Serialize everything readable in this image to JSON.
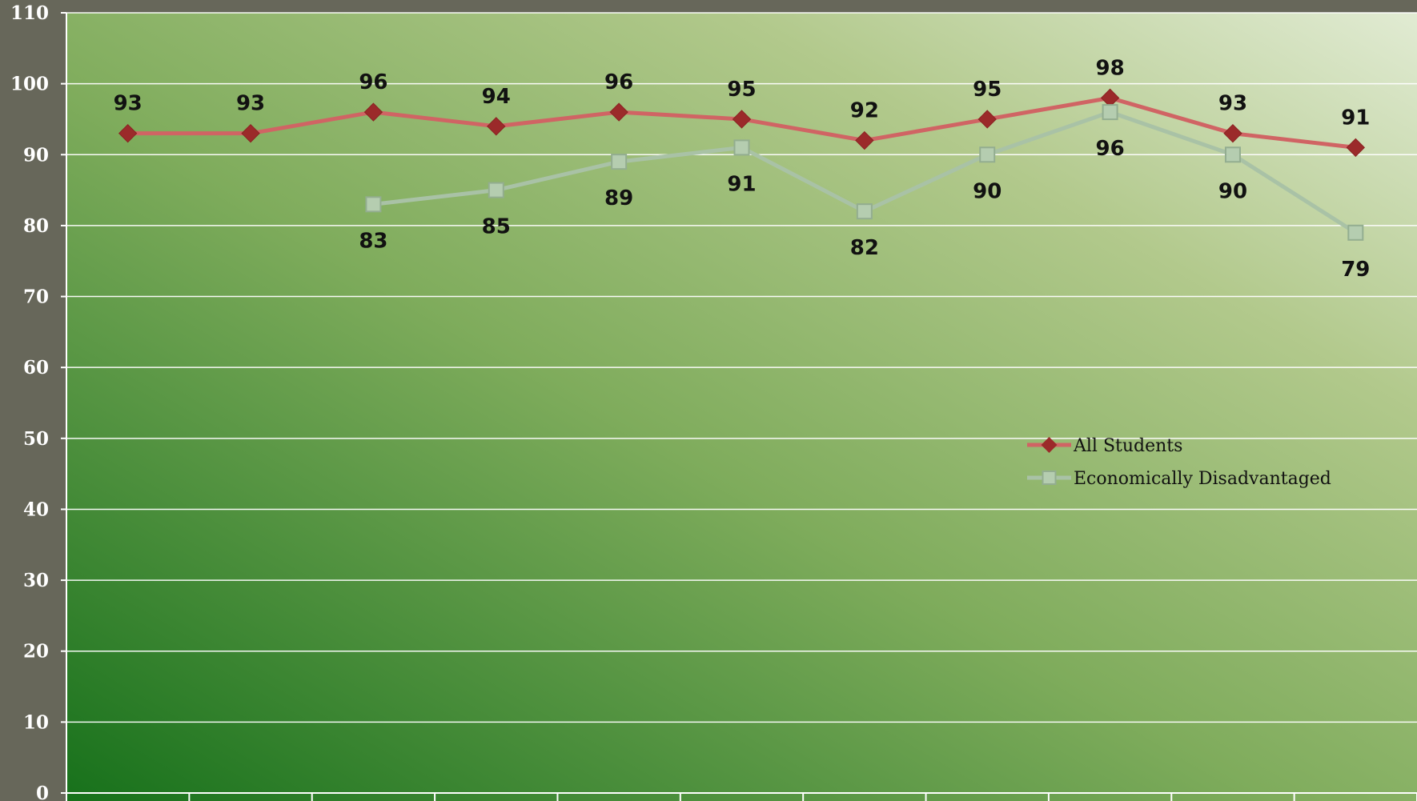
{
  "chart_data": {
    "type": "line",
    "title": "",
    "xlabel": "",
    "ylabel": "",
    "ylim": [
      0,
      110
    ],
    "y_ticks": [
      0,
      10,
      20,
      30,
      40,
      50,
      60,
      70,
      80,
      90,
      100,
      110
    ],
    "grid": true,
    "legend_position": "right-middle",
    "x_count": 11,
    "series": [
      {
        "name": "All Students",
        "values": [
          93,
          93,
          96,
          94,
          96,
          95,
          92,
          95,
          98,
          93,
          91
        ],
        "marker": "diamond",
        "color": "#d06464",
        "marker_color": "#9b2a2a",
        "label_position": "above"
      },
      {
        "name": "Economically Disadvantaged",
        "values": [
          null,
          null,
          83,
          85,
          89,
          91,
          82,
          90,
          96,
          90,
          79
        ],
        "marker": "square",
        "color": "#a9c2a6",
        "marker_color": "#b5cdb0",
        "label_position": "below"
      }
    ]
  },
  "colors": {
    "background": "#67675a",
    "plot_gradient_dark": "#17711b",
    "plot_gradient_light": "#dfe9cf",
    "grid": "#ffffff",
    "tick_text": "#ffffff",
    "label_text": "#111111"
  }
}
